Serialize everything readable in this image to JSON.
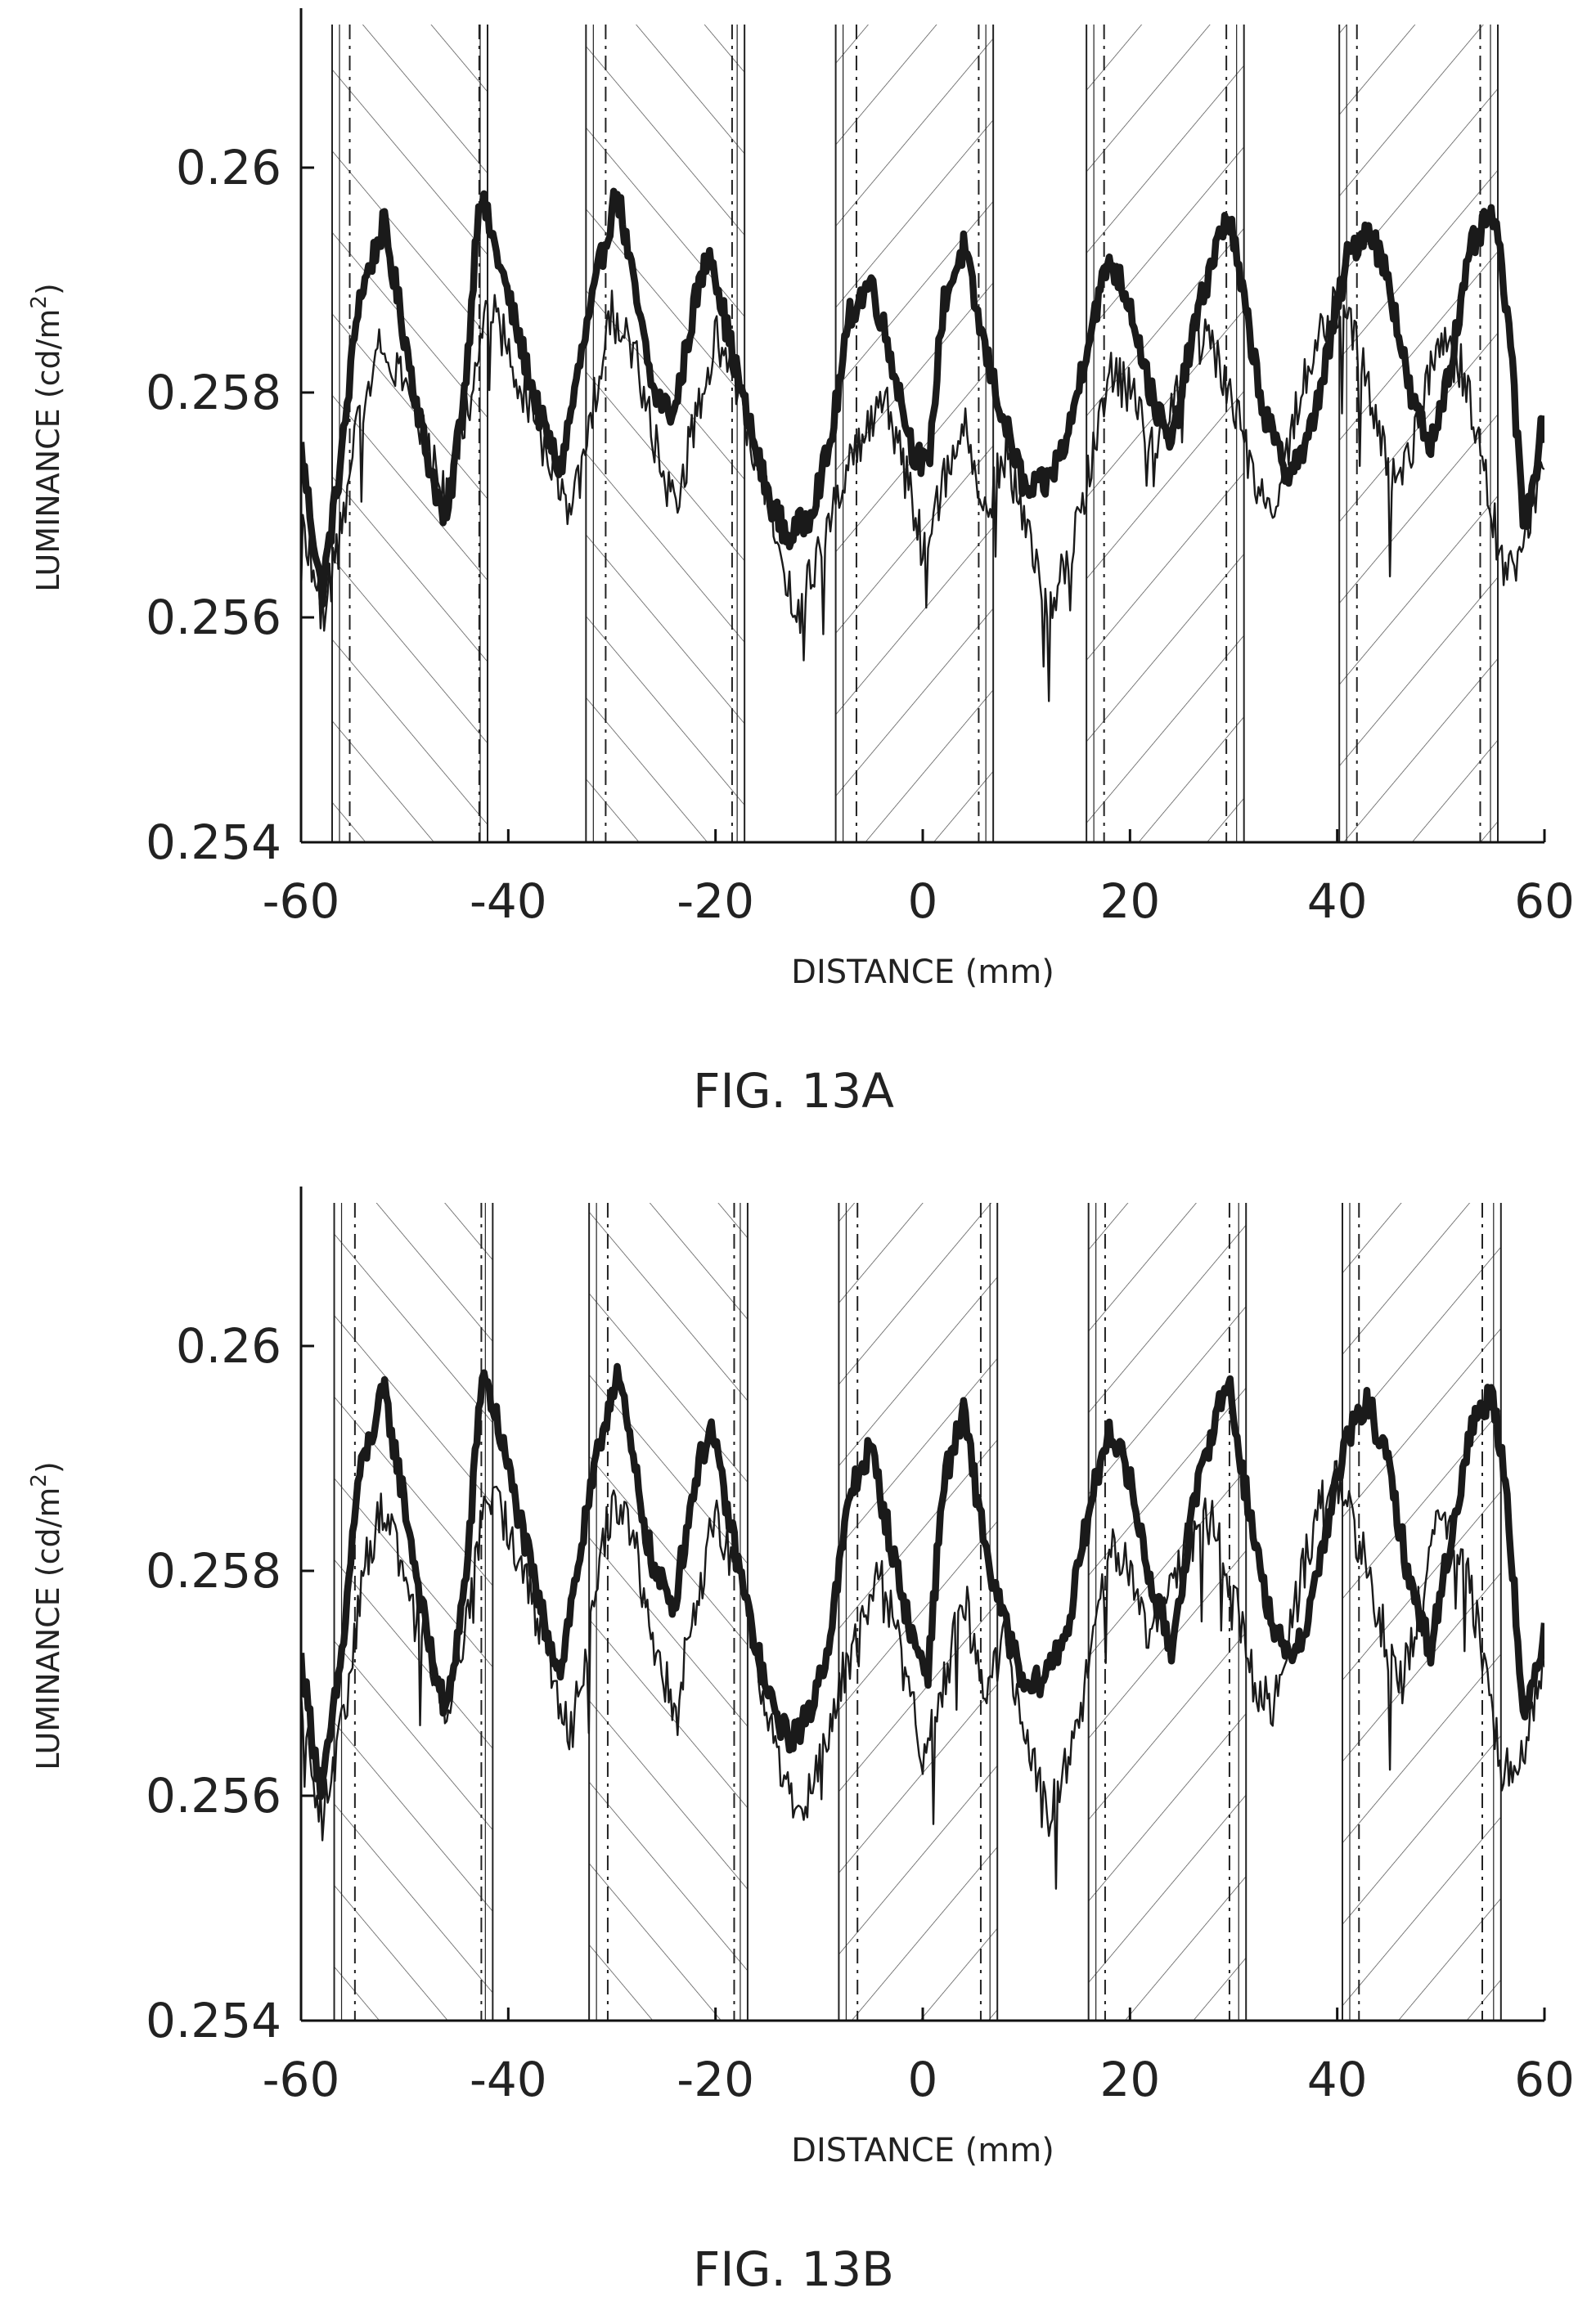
{
  "chart_data": [
    {
      "type": "line",
      "caption": "FIG. 13A",
      "xlabel": "DISTANCE (mm)",
      "ylabel": "LUMINANCE (cd/m²)",
      "ylabel_main": "LUMINANCE (cd/m",
      "ylabel_sup": "2",
      "ylabel_end": ")",
      "xlim": [
        -60,
        60
      ],
      "ylim": [
        0.254,
        0.2612
      ],
      "x_ticks": [
        -60,
        -40,
        -20,
        0,
        20,
        40,
        60
      ],
      "x_tick_labels": [
        "-60",
        "-40",
        "-20",
        "0",
        "20",
        "40",
        "60"
      ],
      "y_ticks": [
        0.254,
        0.256,
        0.258,
        0.26
      ],
      "y_tick_labels": [
        "0.254",
        "0.256",
        "0.258",
        "0.26"
      ],
      "grid": false,
      "bands": [
        {
          "x_start": -57,
          "x_end": -42,
          "dash_left": -55.3,
          "dash_right": -42.8,
          "hatch": "backslash"
        },
        {
          "x_start": -32.5,
          "x_end": -17.2,
          "dash_left": -30.6,
          "dash_right": -18.4,
          "hatch": "backslash"
        },
        {
          "x_start": -8.4,
          "x_end": 6.8,
          "dash_left": -6.4,
          "dash_right": 5.4,
          "hatch": "slash"
        },
        {
          "x_start": 15.8,
          "x_end": 31.0,
          "dash_left": 17.5,
          "dash_right": 29.3,
          "hatch": "slash"
        },
        {
          "x_start": 40.2,
          "x_end": 55.5,
          "dash_left": 41.9,
          "dash_right": 53.8,
          "hatch": "slash"
        }
      ],
      "series": [
        {
          "style": "thick",
          "x": [
            -60,
            -58,
            -56,
            -54.5,
            -52,
            -50,
            -48,
            -46,
            -44,
            -42.8,
            -41,
            -39,
            -37,
            -35,
            -33,
            -31,
            -29.5,
            -28,
            -26,
            -24,
            -22,
            -20.5,
            -19,
            -17,
            -15,
            -13,
            -11,
            -9,
            -7,
            -5,
            -3,
            -1,
            0.5,
            2,
            4,
            5,
            6.5,
            8,
            10,
            12,
            14,
            16,
            18,
            20,
            22,
            24,
            26,
            28,
            29.5,
            31,
            33,
            35,
            37,
            39,
            41,
            43,
            45,
            47,
            49,
            51,
            53,
            55,
            56.5,
            58,
            60
          ],
          "y": [
            0.2575,
            0.2562,
            0.2575,
            0.2588,
            0.2595,
            0.2585,
            0.2575,
            0.2568,
            0.2582,
            0.2598,
            0.2592,
            0.2585,
            0.2578,
            0.2573,
            0.2583,
            0.2592,
            0.2598,
            0.259,
            0.258,
            0.2578,
            0.2588,
            0.2593,
            0.2586,
            0.2578,
            0.2571,
            0.2567,
            0.2569,
            0.2575,
            0.2587,
            0.259,
            0.2583,
            0.2575,
            0.2573,
            0.2588,
            0.2593,
            0.2588,
            0.2582,
            0.2577,
            0.2571,
            0.2572,
            0.2576,
            0.2585,
            0.2592,
            0.2588,
            0.258,
            0.2575,
            0.2585,
            0.2592,
            0.2596,
            0.2588,
            0.2578,
            0.2573,
            0.2575,
            0.2583,
            0.2592,
            0.2595,
            0.259,
            0.258,
            0.2575,
            0.2583,
            0.2593,
            0.2596,
            0.2587,
            0.2568,
            0.2578
          ]
        },
        {
          "style": "thin",
          "x": [
            -60,
            -58,
            -56,
            -54,
            -52,
            -50,
            -48,
            -46,
            -44,
            -42,
            -40,
            -38,
            -36,
            -34,
            -32,
            -30,
            -28,
            -26,
            -24,
            -22,
            -20,
            -18,
            -16,
            -14,
            -12,
            -10,
            -8,
            -6,
            -4,
            -2,
            0,
            2,
            4,
            6,
            8,
            10,
            12,
            14,
            16,
            18,
            20,
            22,
            24,
            26,
            28,
            30,
            32,
            34,
            36,
            38,
            40,
            42,
            44,
            46,
            48,
            50,
            52,
            54,
            56,
            58,
            60
          ],
          "y": [
            0.257,
            0.256,
            0.2568,
            0.258,
            0.2585,
            0.2581,
            0.2576,
            0.257,
            0.2578,
            0.2588,
            0.2584,
            0.2579,
            0.2574,
            0.2568,
            0.2578,
            0.2587,
            0.2584,
            0.2576,
            0.257,
            0.2577,
            0.2585,
            0.2581,
            0.2574,
            0.2567,
            0.256,
            0.2566,
            0.2572,
            0.2575,
            0.258,
            0.2574,
            0.2566,
            0.2572,
            0.2578,
            0.2569,
            0.2575,
            0.2568,
            0.256,
            0.2565,
            0.2573,
            0.2582,
            0.258,
            0.2575,
            0.2578,
            0.2585,
            0.2584,
            0.2579,
            0.2572,
            0.257,
            0.2578,
            0.2585,
            0.2588,
            0.2584,
            0.2577,
            0.2571,
            0.2578,
            0.2585,
            0.2582,
            0.2574,
            0.2564,
            0.2566,
            0.2575
          ]
        }
      ]
    },
    {
      "type": "line",
      "caption": "FIG. 13B",
      "xlabel": "DISTANCE (mm)",
      "ylabel": "LUMINANCE (cd/m²)",
      "ylabel_main": "LUMINANCE (cd/m",
      "ylabel_sup": "2",
      "ylabel_end": ")",
      "xlim": [
        -60,
        60
      ],
      "ylim": [
        0.254,
        0.2612
      ],
      "x_ticks": [
        -60,
        -40,
        -20,
        0,
        20,
        40,
        60
      ],
      "x_tick_labels": [
        "-60",
        "-40",
        "-20",
        "0",
        "20",
        "40",
        "60"
      ],
      "y_ticks": [
        0.254,
        0.256,
        0.258,
        0.26
      ],
      "y_tick_labels": [
        "0.254",
        "0.256",
        "0.258",
        "0.26"
      ],
      "grid": false,
      "bands": [
        {
          "x_start": -56.8,
          "x_end": -41.5,
          "dash_left": -54.8,
          "dash_right": -42.6,
          "hatch": "backslash"
        },
        {
          "x_start": -32.2,
          "x_end": -16.9,
          "dash_left": -30.4,
          "dash_right": -18.2,
          "hatch": "backslash"
        },
        {
          "x_start": -8.1,
          "x_end": 7.2,
          "dash_left": -6.3,
          "dash_right": 5.6,
          "hatch": "slash"
        },
        {
          "x_start": 16.0,
          "x_end": 31.2,
          "dash_left": 17.6,
          "dash_right": 29.6,
          "hatch": "slash"
        },
        {
          "x_start": 40.5,
          "x_end": 55.8,
          "dash_left": 42.1,
          "dash_right": 54.0,
          "hatch": "slash"
        }
      ],
      "series": [
        {
          "style": "thick",
          "x": [
            -60,
            -58,
            -56,
            -54.5,
            -52,
            -50,
            -48,
            -46,
            -44,
            -42.5,
            -41,
            -39,
            -37,
            -35,
            -33,
            -31,
            -29.5,
            -28,
            -26,
            -24,
            -22,
            -20.5,
            -19,
            -17,
            -15,
            -13,
            -11,
            -9,
            -7,
            -5,
            -3,
            -1,
            0.5,
            2,
            4,
            5,
            6.5,
            8,
            10,
            12,
            14,
            16,
            18,
            20,
            22,
            24,
            26,
            28,
            29.5,
            31,
            33,
            35,
            37,
            39,
            41,
            43,
            45,
            47,
            49,
            51,
            53,
            55,
            56.5,
            58,
            60
          ],
          "y": [
            0.2572,
            0.256,
            0.2573,
            0.2588,
            0.2596,
            0.2586,
            0.2575,
            0.2567,
            0.258,
            0.2598,
            0.2593,
            0.2585,
            0.2577,
            0.2571,
            0.2582,
            0.2592,
            0.2598,
            0.259,
            0.258,
            0.2577,
            0.2588,
            0.2593,
            0.2586,
            0.2577,
            0.2569,
            0.2565,
            0.2567,
            0.2574,
            0.2587,
            0.2591,
            0.2582,
            0.2574,
            0.2571,
            0.2588,
            0.2594,
            0.2588,
            0.258,
            0.2575,
            0.2569,
            0.2571,
            0.2575,
            0.2585,
            0.2593,
            0.2588,
            0.2579,
            0.2573,
            0.2585,
            0.2593,
            0.2597,
            0.2588,
            0.2578,
            0.2572,
            0.2575,
            0.2584,
            0.2592,
            0.2595,
            0.2589,
            0.2579,
            0.2573,
            0.2583,
            0.2593,
            0.2596,
            0.2586,
            0.2566,
            0.2575
          ]
        },
        {
          "style": "thin",
          "x": [
            -60,
            -58,
            -56,
            -54,
            -52,
            -50,
            -48,
            -46,
            -44,
            -42,
            -40,
            -38,
            -36,
            -34,
            -32,
            -30,
            -28,
            -26,
            -24,
            -22,
            -20,
            -18,
            -16,
            -14,
            -12,
            -10,
            -8,
            -6,
            -4,
            -2,
            0,
            2,
            4,
            6,
            8,
            10,
            12,
            14,
            16,
            18,
            20,
            22,
            24,
            26,
            28,
            30,
            32,
            34,
            36,
            38,
            40,
            42,
            44,
            46,
            48,
            50,
            52,
            54,
            56,
            58,
            60
          ],
          "y": [
            0.2568,
            0.2558,
            0.2566,
            0.258,
            0.2586,
            0.258,
            0.2574,
            0.2568,
            0.2576,
            0.2587,
            0.2584,
            0.2578,
            0.2572,
            0.2565,
            0.2576,
            0.2586,
            0.2583,
            0.2574,
            0.2568,
            0.2576,
            0.2585,
            0.258,
            0.2572,
            0.2564,
            0.2558,
            0.2563,
            0.257,
            0.2575,
            0.258,
            0.2572,
            0.2564,
            0.257,
            0.2578,
            0.2568,
            0.2574,
            0.2566,
            0.2558,
            0.2563,
            0.2572,
            0.2582,
            0.258,
            0.2574,
            0.2578,
            0.2585,
            0.2584,
            0.2578,
            0.257,
            0.2568,
            0.2577,
            0.2585,
            0.2588,
            0.2583,
            0.2576,
            0.257,
            0.2577,
            0.2585,
            0.2582,
            0.2573,
            0.2562,
            0.2563,
            0.2573
          ]
        }
      ]
    }
  ]
}
